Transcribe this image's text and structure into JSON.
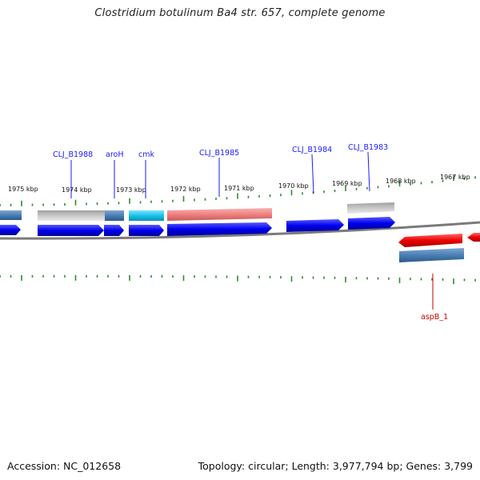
{
  "title": "Clostridium botulinum Ba4 str. 657, complete genome",
  "footer": {
    "accession": "Accession: NC_012658",
    "summary": "Topology: circular; Length: 3,977,794 bp; Genes: 3,799"
  },
  "colors": {
    "gene_label_blue": "#1a1aff",
    "gene_label_red": "#cc0000",
    "cds_blue": "#0000ee",
    "cds_red": "#ee0000",
    "steelblue": "#4a7fb5",
    "cyan": "#18c4ee",
    "salmon": "#f08080",
    "grey": "#b8b8b8",
    "tick_green": "#2e8b2e",
    "backbone": "#7a7a7a"
  },
  "scale_labels": [
    "1975 kbp",
    "1974 kbp",
    "1973 kbp",
    "1972 kbp",
    "1971 kbp",
    "1970 kbp",
    "1969 kbp",
    "1968 kbp",
    "1967 kbp"
  ],
  "gene_labels": [
    {
      "text": "CLJ_B1988",
      "color": "blue"
    },
    {
      "text": "aroH",
      "color": "blue"
    },
    {
      "text": "cmk",
      "color": "blue"
    },
    {
      "text": "CLJ_B1985",
      "color": "blue"
    },
    {
      "text": "CLJ_B1984",
      "color": "blue"
    },
    {
      "text": "CLJ_B1983",
      "color": "blue"
    },
    {
      "text": "aspB_1",
      "color": "red"
    }
  ]
}
